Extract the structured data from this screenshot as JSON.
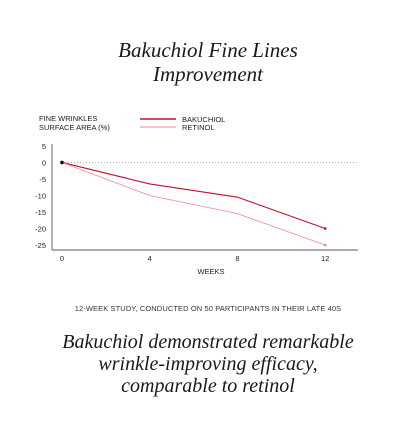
{
  "title_lines": [
    "Bakuchiol Fine Lines",
    "Improvement"
  ],
  "caption": "12-WEEK STUDY, CONDUCTED ON 50 PARTICIPANTS IN THEIR LATE 40S",
  "conclusion_lines": [
    "Bakuchiol demonstrated remarkable",
    "wrinkle-improving efficacy,",
    "comparable to retinol"
  ],
  "chart_data": {
    "type": "line",
    "title": "Bakuchiol Fine Lines Improvement",
    "ylabel_lines": [
      "FINE WRINKLES",
      "SURFACE AREA (%)"
    ],
    "xlabel": "WEEKS",
    "x": [
      0,
      4,
      8,
      12
    ],
    "x_ticks": [
      "0",
      "4",
      "8",
      "12"
    ],
    "y_ticks": [
      "5",
      "0",
      "-5",
      "-10",
      "-15",
      "-20",
      "-25"
    ],
    "y_tick_values": [
      5,
      0,
      -5,
      -10,
      -15,
      -20,
      -25
    ],
    "xlim": [
      0,
      13.5
    ],
    "ylim": [
      -26.5,
      6.5
    ],
    "zero_line": "dotted",
    "legend_position": "top-center",
    "series": [
      {
        "name": "BAKUCHIOL",
        "color": "#c8102e",
        "values": [
          0,
          -6.5,
          -10.5,
          -20
        ]
      },
      {
        "name": "RETINOL",
        "color": "#ef8a9a",
        "values": [
          0,
          -10,
          -15.5,
          -25
        ]
      }
    ]
  }
}
